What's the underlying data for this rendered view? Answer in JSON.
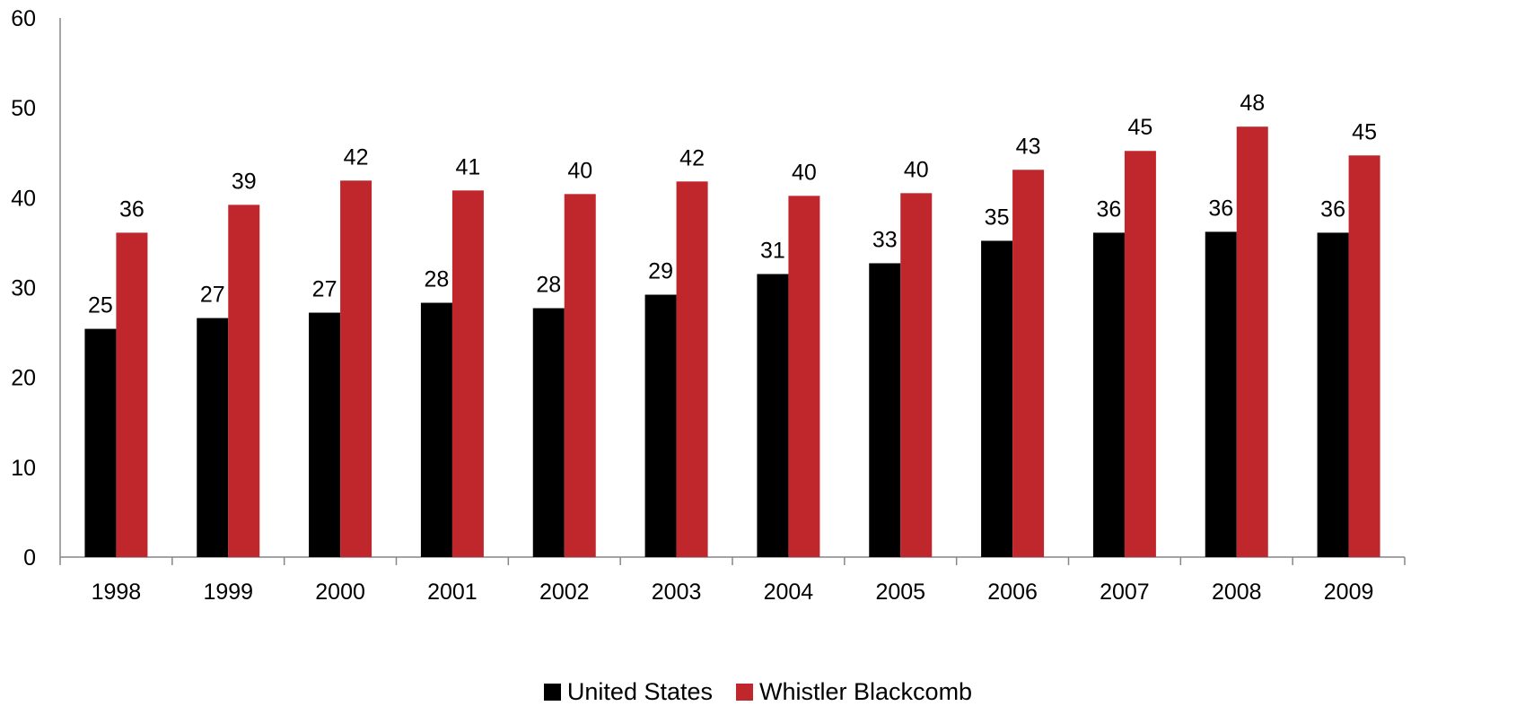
{
  "chart_data": {
    "type": "bar",
    "title": "",
    "xlabel": "",
    "ylabel": "",
    "ylim": [
      0,
      60
    ],
    "yticks": [
      0,
      10,
      20,
      30,
      40,
      50,
      60
    ],
    "categories": [
      "1998",
      "1999",
      "2000",
      "2001",
      "2002",
      "2003",
      "2004",
      "2005",
      "2006",
      "2007",
      "2008",
      "2009"
    ],
    "series": [
      {
        "name": "United States",
        "color": "#000000",
        "values": [
          25.4,
          26.6,
          27.2,
          28.3,
          27.7,
          29.2,
          31.5,
          32.7,
          35.2,
          36.1,
          36.2,
          36.1
        ],
        "labels": [
          "25",
          "27",
          "27",
          "28",
          "28",
          "29",
          "31",
          "33",
          "35",
          "36",
          "36",
          "36"
        ]
      },
      {
        "name": "Whistler Blackcomb",
        "color": "#c0272d",
        "values": [
          36.1,
          39.2,
          41.9,
          40.8,
          40.4,
          41.8,
          40.2,
          40.5,
          43.1,
          45.2,
          47.9,
          44.7
        ],
        "labels": [
          "36",
          "39",
          "42",
          "41",
          "40",
          "42",
          "40",
          "40",
          "43",
          "45",
          "48",
          "45"
        ]
      }
    ],
    "grid": false,
    "legend_position": "bottom"
  }
}
